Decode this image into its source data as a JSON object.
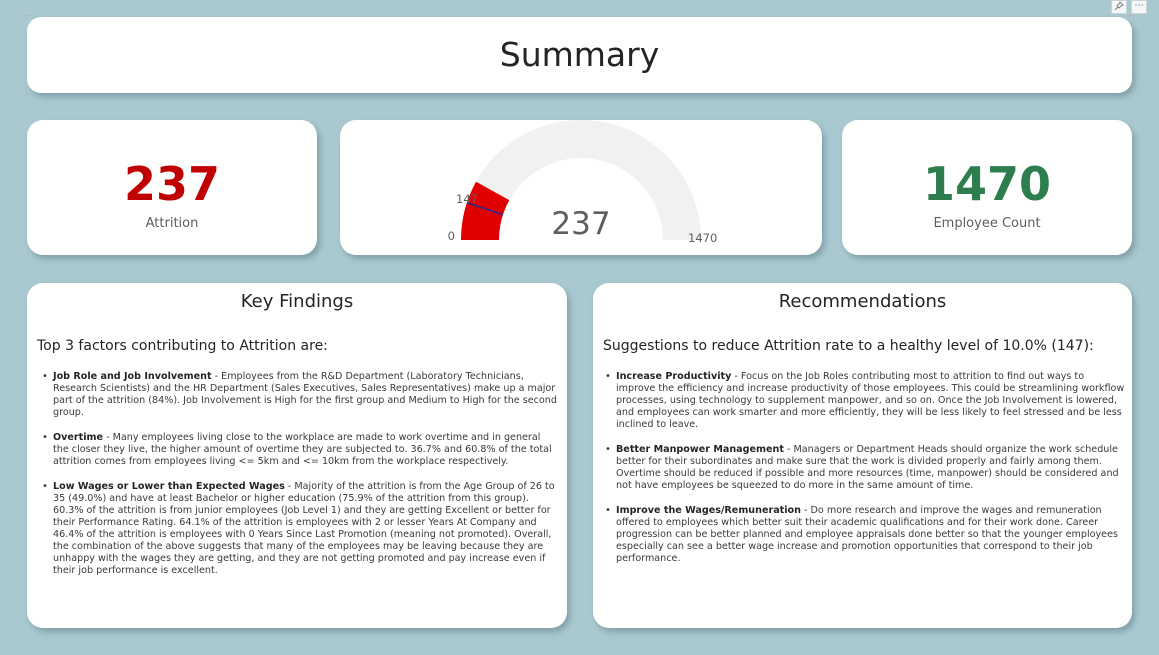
{
  "title": "Summary",
  "kpis": {
    "attrition": {
      "value": "237",
      "label": "Attrition",
      "color": "#c00000"
    },
    "employees": {
      "value": "1470",
      "label": "Employee Count",
      "color": "#2e7d4f"
    }
  },
  "gauge": {
    "value": 237,
    "value_label": "237",
    "min": 0,
    "min_label": "0",
    "max": 1470,
    "max_label": "1470",
    "target": 147,
    "target_label": "147",
    "fill_color": "#e00000",
    "track_color": "#f1f1f1",
    "target_color": "#2b2b8c"
  },
  "key_findings": {
    "title": "Key Findings",
    "intro": "Top 3 factors contributing to Attrition are:",
    "items": [
      {
        "heading": "Job Role and Job Involvement",
        "text": " - Employees from the R&D Department (Laboratory Technicians, Research Scientists) and the HR Department (Sales Executives, Sales Representatives) make up a major part of the attrition (84%). Job Involvement is High for the first group and Medium to High for the second group."
      },
      {
        "heading": "Overtime",
        "text": " - Many employees living close to the workplace are made to work overtime and in general the closer they live, the higher amount of overtime they are subjected to. 36.7% and 60.8% of the total attrition comes from employees living <= 5km and <= 10km from the workplace respectively."
      },
      {
        "heading": "Low Wages or Lower than Expected Wages",
        "text": " - Majority of the attrition is from the Age Group of 26 to 35 (49.0%) and have at least Bachelor or higher education (75.9% of the attrition from this group). 60.3% of the attrition is from junior employees (Job Level 1) and they are getting Excellent or better for their Performance Rating. 64.1% of the attrition is employees with 2 or lesser Years At Company and 46.4% of the attrition is employees with 0 Years Since Last Promotion (meaning not promoted). Overall, the combination of the above suggests that many of the employees may be leaving because they are unhappy with the wages they are getting, and they are not getting promoted and pay increase even if their job performance is excellent."
      }
    ]
  },
  "recommendations": {
    "title": "Recommendations",
    "intro": "Suggestions to reduce Attrition rate to a healthy level of 10.0% (147):",
    "items": [
      {
        "heading": "Increase Productivity",
        "text": " - Focus on the Job Roles contributing most to attrition to find out ways to improve the efficiency and increase productivity of those employees. This could be streamlining workflow processes, using technology to supplement manpower, and so on. Once the Job Involvement is lowered, and employees can work smarter and more efficiently, they will be less likely to feel stressed and be less inclined to leave."
      },
      {
        "heading": "Better Manpower Management",
        "text": " - Managers or Department Heads should organize the work schedule better for their subordinates and make sure that the work is divided properly and fairly among them. Overtime should be reduced if possible and more resources (time, manpower) should be considered and not have employees be squeezed to do more in the same amount of time."
      },
      {
        "heading": "Improve the Wages/Remuneration",
        "text": " - Do more research and improve the wages and remuneration offered to employees which better suit their academic qualifications and for their work done. Career progression can be better planned and employee appraisals done better so that the younger employees especially can see a better wage increase and promotion opportunities that correspond to their job performance."
      }
    ]
  },
  "visual_header_icons": [
    "pin-icon",
    "more-options-icon"
  ]
}
